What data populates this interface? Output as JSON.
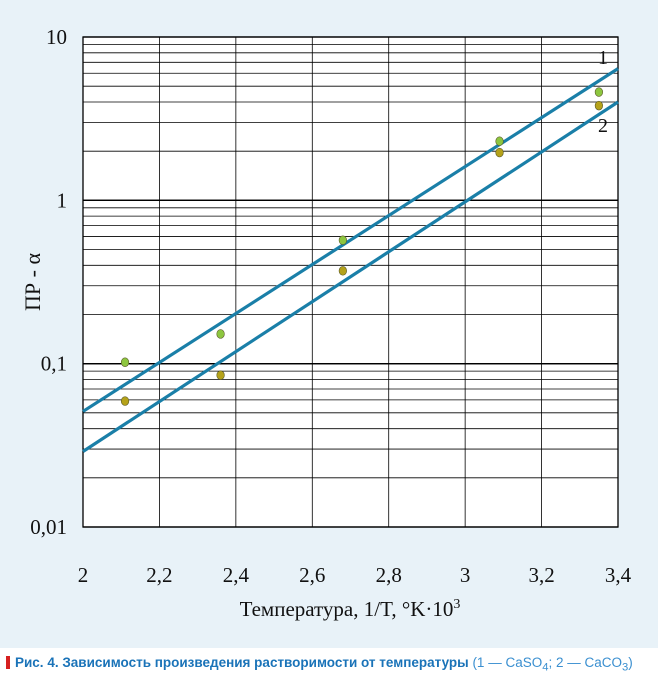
{
  "chart_data": {
    "type": "line",
    "title": "",
    "xlabel": "Температура, 1/T,  °K·10",
    "xlabel_sup": "3",
    "ylabel": "ПР - α",
    "xlim": [
      2,
      3.4
    ],
    "ylim": [
      0.01,
      10
    ],
    "yscale": "log",
    "grid": true,
    "x_ticks": [
      2,
      2.2,
      2.4,
      2.6,
      2.8,
      3,
      3.2,
      3.4
    ],
    "x_tick_labels": [
      "2",
      "2,2",
      "2,4",
      "2,6",
      "2,8",
      "3",
      "3,2",
      "3,4"
    ],
    "y_ticks": [
      0.01,
      0.1,
      1,
      10
    ],
    "y_tick_labels": [
      "0,01",
      "0,1",
      "1",
      "10"
    ],
    "series": [
      {
        "name": "1",
        "line": {
          "x": [
            2.0,
            3.4
          ],
          "y": [
            0.051,
            6.4
          ]
        },
        "points": {
          "x": [
            2.11,
            2.36,
            2.68,
            3.09,
            3.35
          ],
          "y": [
            0.102,
            0.152,
            0.57,
            2.3,
            4.6
          ]
        },
        "line_color": "#1a7fa8",
        "point_color": "#8dc63f"
      },
      {
        "name": "2",
        "line": {
          "x": [
            2.0,
            3.4
          ],
          "y": [
            0.029,
            4.0
          ]
        },
        "points": {
          "x": [
            2.11,
            2.36,
            2.68,
            3.09,
            3.35
          ],
          "y": [
            0.059,
            0.085,
            0.37,
            1.96,
            3.8
          ]
        },
        "line_color": "#1a7fa8",
        "point_color": "#b5a21a"
      }
    ]
  },
  "caption": {
    "lead": "Рис. 4. Зависимость произведения растворимости от температуры",
    "note_parts": [
      " (1 — CaSO",
      "4",
      "; 2 — CaCO",
      "3",
      ")"
    ]
  },
  "colors": {
    "panel_bg": "#e8f2f8",
    "plot_bg": "#ffffff",
    "grid": "#000000",
    "caption_text": "#1a73b8",
    "caption_mark": "#d62020"
  }
}
